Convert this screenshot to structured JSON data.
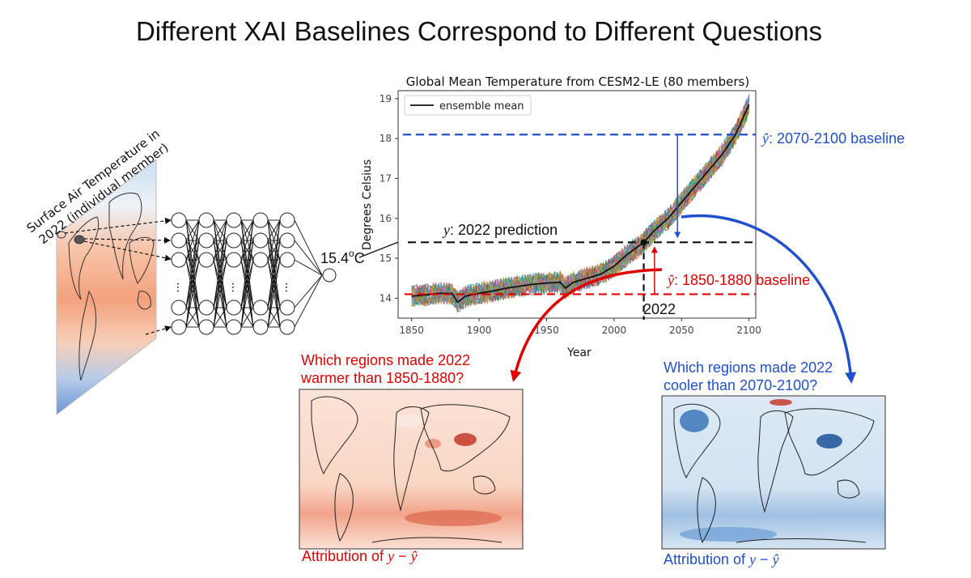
{
  "title": "Different XAI Baselines Correspond to Different Questions",
  "input_map": {
    "label_line1": "Surface Air Temperature in",
    "label_line2": "2022 (individual member)"
  },
  "network": {
    "dots": "...",
    "output_value": "15.4",
    "output_sup": "o",
    "output_unit": "C"
  },
  "chart_data": {
    "type": "line",
    "title": "Global Mean Temperature from CESM2-LE (80 members)",
    "xlabel": "Year",
    "ylabel": "Degrees Celsius",
    "xlim": [
      1840,
      2105
    ],
    "ylim": [
      13.5,
      19.2
    ],
    "xticks": [
      1850,
      1900,
      1950,
      2000,
      2050,
      2100
    ],
    "yticks": [
      14,
      15,
      16,
      17,
      18,
      19
    ],
    "legend": {
      "label": "ensemble mean",
      "position": "top-left"
    },
    "series": [
      {
        "name": "ensemble mean",
        "x": [
          1850,
          1860,
          1870,
          1880,
          1884,
          1890,
          1900,
          1910,
          1920,
          1930,
          1940,
          1950,
          1960,
          1964,
          1970,
          1980,
          1990,
          2000,
          2010,
          2022,
          2030,
          2040,
          2050,
          2060,
          2070,
          2080,
          2090,
          2100
        ],
        "y": [
          14.05,
          14.08,
          14.12,
          14.12,
          13.9,
          14.05,
          14.12,
          14.18,
          14.25,
          14.3,
          14.35,
          14.38,
          14.4,
          14.25,
          14.4,
          14.5,
          14.6,
          14.8,
          15.1,
          15.4,
          15.7,
          16.0,
          16.4,
          16.8,
          17.2,
          17.6,
          18.1,
          18.85
        ]
      }
    ],
    "prediction": {
      "year": 2022,
      "value": 15.4,
      "label_var": "y",
      "label_text": ": 2022 prediction",
      "year_label": "2022"
    },
    "baseline_cold": {
      "value": 14.1,
      "label_var": "ŷ",
      "label_text": ": 1850-1880 baseline"
    },
    "baseline_warm": {
      "value": 18.1,
      "label_var": "ŷ",
      "label_text": ": 2070-2100 baseline"
    }
  },
  "questions": {
    "red_line1": "Which regions made 2022",
    "red_line2": "warmer than 1850-1880?",
    "blue_line1": "Which regions made 2022",
    "blue_line2": "cooler than 2070-2100?"
  },
  "attribution": {
    "prefix": "Attribution of ",
    "expr_y": "y",
    "expr_minus": " − ",
    "expr_yhat": "ŷ"
  },
  "colors": {
    "red": "#e00000",
    "blue": "#2050d0",
    "warm_map": "#f5c6ad",
    "cool_map": "#c8dcef"
  }
}
